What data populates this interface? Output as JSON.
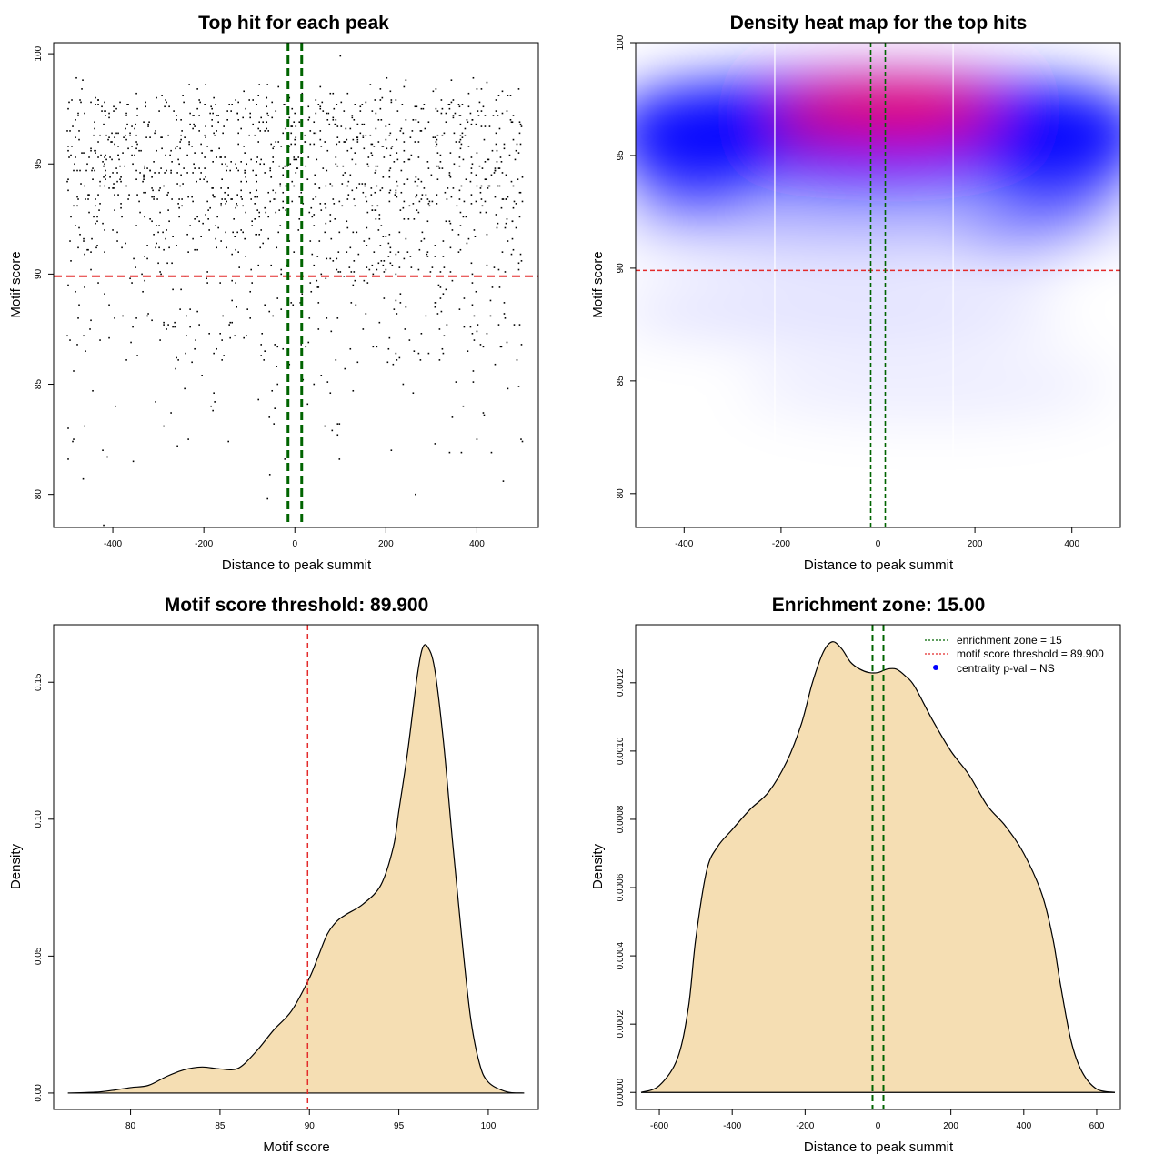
{
  "colors": {
    "threshold": "#e32b2b",
    "zone": "#006400",
    "fill": "#f5deb3",
    "heat_low": "#ffffff",
    "heat_mid": "#0000ff",
    "heat_high": "#ff0000",
    "centrality_marker": "#0000ff"
  },
  "chart_data": [
    {
      "type": "scatter",
      "title": "Top hit for each peak",
      "xlabel": "Distance to peak summit",
      "ylabel": "Motif score",
      "xlim": [
        -530,
        535
      ],
      "ylim": [
        78.5,
        100.5
      ],
      "xticks": [
        -400,
        -200,
        0,
        200,
        400
      ],
      "yticks": [
        80,
        85,
        90,
        95,
        100
      ],
      "threshold": 89.9,
      "zone": [
        -15,
        15
      ],
      "note": "~1500 points; dense band between score 92 and 99 across x in [-500, 500], sparser below threshold",
      "seed": 7,
      "n_points": 1500,
      "sample_points": [
        [
          -420,
          78.6
        ],
        [
          -465,
          80.7
        ],
        [
          -60,
          79.8
        ],
        [
          -55,
          80.9
        ],
        [
          265,
          80.0
        ],
        [
          458,
          80.6
        ],
        [
          497,
          82.5
        ],
        [
          -355,
          81.5
        ],
        [
          100,
          99.9
        ]
      ]
    },
    {
      "type": "heatmap",
      "title": "Density heat map for the top hits",
      "xlabel": "Distance to peak summit",
      "ylabel": "Motif score",
      "xlim": [
        -500,
        500
      ],
      "ylim": [
        78.5,
        100.0
      ],
      "xticks": [
        -400,
        -200,
        0,
        200,
        400
      ],
      "yticks": [
        80,
        85,
        90,
        95,
        100
      ],
      "threshold": 89.9,
      "zone": [
        -15,
        15
      ],
      "white_lines_x": [
        -213,
        155
      ],
      "note": "red core centred near x=50, score 96.8; blue band spanning x -500..500 at score 94-98"
    },
    {
      "type": "area",
      "title": "Motif score threshold: 89.900",
      "xlabel": "Motif score",
      "ylabel": "Density",
      "xlim": [
        75.7,
        102.8
      ],
      "ylim": [
        -0.006,
        0.171
      ],
      "xticks": [
        80,
        85,
        90,
        95,
        100
      ],
      "yticks": [
        0.0,
        0.05,
        0.1,
        0.15
      ],
      "ytick_labels": [
        "0.00",
        "0.05",
        "0.10",
        "0.15"
      ],
      "threshold": 89.9,
      "x": [
        76.5,
        78,
        79,
        80,
        81,
        82,
        83,
        84,
        85,
        86,
        87,
        88,
        89,
        90,
        90.5,
        91,
        91.5,
        92,
        93,
        94,
        94.7,
        95,
        95.5,
        96,
        96.3,
        96.6,
        97,
        97.5,
        98,
        98.5,
        99,
        99.5,
        100,
        101,
        102
      ],
      "y": [
        0,
        0.0003,
        0.001,
        0.002,
        0.0028,
        0.006,
        0.0085,
        0.0095,
        0.0088,
        0.009,
        0.015,
        0.023,
        0.03,
        0.042,
        0.05,
        0.058,
        0.0625,
        0.065,
        0.069,
        0.076,
        0.09,
        0.103,
        0.125,
        0.151,
        0.162,
        0.163,
        0.155,
        0.128,
        0.092,
        0.058,
        0.028,
        0.011,
        0.004,
        0.0005,
        0
      ]
    },
    {
      "type": "area",
      "title": "Enrichment zone: 15.00",
      "xlabel": "Distance to peak summit",
      "ylabel": "Density",
      "xlim": [
        -665,
        665
      ],
      "ylim": [
        -5e-05,
        0.00137
      ],
      "xticks": [
        -600,
        -400,
        -200,
        0,
        200,
        400,
        600
      ],
      "yticks": [
        0.0,
        0.0002,
        0.0004,
        0.0006,
        0.0008,
        0.001,
        0.0012
      ],
      "ytick_labels": [
        "0.0000",
        "0.0002",
        "0.0004",
        "0.0006",
        "0.0008",
        "0.0010",
        "0.0012"
      ],
      "zone": [
        -15,
        15
      ],
      "x": [
        -650,
        -600,
        -550,
        -520,
        -500,
        -470,
        -440,
        -400,
        -350,
        -300,
        -250,
        -210,
        -180,
        -150,
        -125,
        -100,
        -75,
        -50,
        -25,
        0,
        25,
        50,
        75,
        100,
        150,
        200,
        250,
        300,
        350,
        400,
        450,
        480,
        500,
        530,
        560,
        600,
        650
      ],
      "y": [
        0,
        2e-05,
        0.0001,
        0.00025,
        0.00045,
        0.00065,
        0.00072,
        0.00077,
        0.00083,
        0.00088,
        0.00097,
        0.00108,
        0.0012,
        0.00129,
        0.00132,
        0.0013,
        0.00126,
        0.00124,
        0.00123,
        0.00123,
        0.00124,
        0.00124,
        0.00122,
        0.00119,
        0.00109,
        0.001,
        0.00093,
        0.00084,
        0.00078,
        0.0007,
        0.00058,
        0.00045,
        0.00032,
        0.00015,
        6e-05,
        1e-05,
        0
      ]
    }
  ],
  "legend": {
    "items": [
      {
        "label": "enrichment zone = 15",
        "kind": "line",
        "color": "#006400"
      },
      {
        "label": "motif score threshold = 89.900",
        "kind": "line",
        "color": "#e32b2b"
      },
      {
        "label": "centrality p-val = NS",
        "kind": "dot",
        "color": "#0000ff"
      }
    ]
  }
}
